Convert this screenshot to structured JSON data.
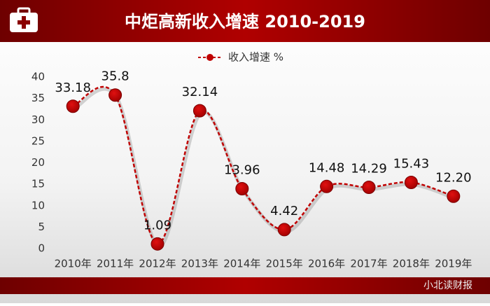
{
  "chart_data": {
    "type": "line",
    "title": "中炬高新收入增速 2010-2019",
    "watermark": "小北读财报",
    "categories": [
      "2010年",
      "2011年",
      "2012年",
      "2013年",
      "2014年",
      "2015年",
      "2016年",
      "2017年",
      "2018年",
      "2019年"
    ],
    "series": [
      {
        "name": "收入增速 %",
        "color": "#c00000",
        "values": [
          33.18,
          35.8,
          1.09,
          32.14,
          13.96,
          4.42,
          14.48,
          14.29,
          15.43,
          12.2
        ],
        "value_labels": [
          "33.18",
          "35.8",
          "1.09",
          "32.14",
          "13.96",
          "4.42",
          "14.48",
          "14.29",
          "15.43",
          "12.20"
        ]
      }
    ],
    "ylim": [
      0,
      40
    ],
    "yticks": [
      0,
      5,
      10,
      15,
      20,
      25,
      30,
      35,
      40
    ],
    "smooth": true,
    "legend": "top"
  }
}
